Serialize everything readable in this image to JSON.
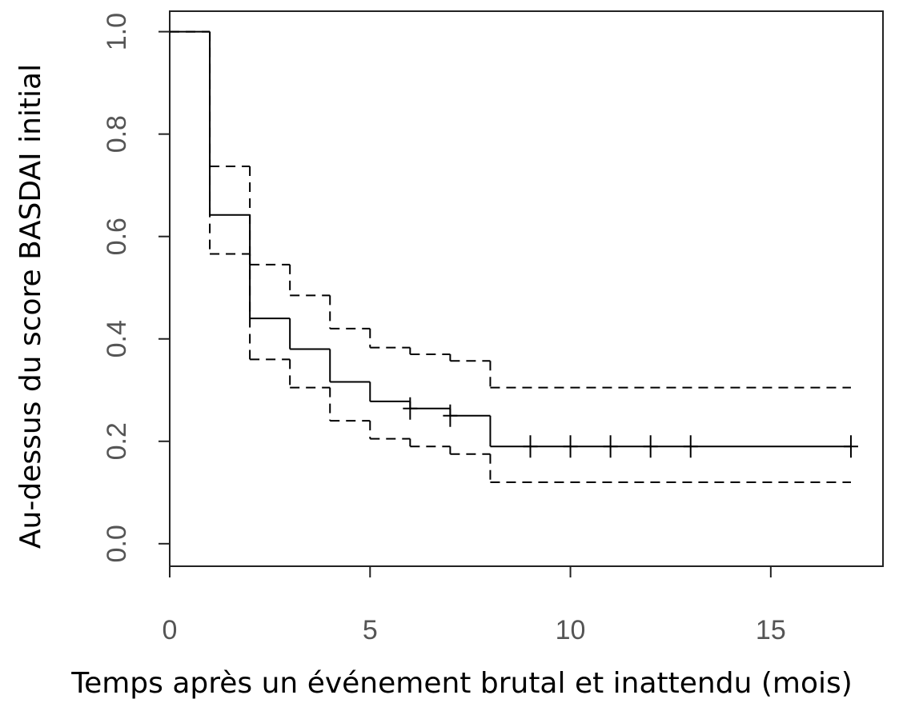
{
  "chart_data": {
    "type": "step",
    "x_label": "Temps après un événement brutal et inattendu (mois)",
    "y_label": "Au-dessus du score BASDAI initial",
    "xlim": [
      0,
      17.8
    ],
    "ylim": [
      -0.044,
      1.04
    ],
    "xticks": [
      0,
      5,
      10,
      15
    ],
    "yticks": [
      {
        "value": 0,
        "label": "0.0"
      },
      0.2,
      0.4,
      0.6,
      0.8,
      {
        "value": 1,
        "label": "1.0"
      }
    ],
    "series": [
      {
        "style": "solid",
        "color": "#000000",
        "x": [
          0,
          1,
          2,
          3,
          4,
          5,
          6,
          7,
          8,
          17
        ],
        "values": [
          1.0,
          0.642,
          0.44,
          0.38,
          0.316,
          0.278,
          0.264,
          0.25,
          0.19,
          0.19
        ]
      },
      {
        "style": "dashed",
        "color": "#000000",
        "x": [
          0,
          1,
          2,
          3,
          4,
          5,
          6,
          7,
          8,
          17
        ],
        "values": [
          1.0,
          0.737,
          0.545,
          0.485,
          0.42,
          0.383,
          0.37,
          0.357,
          0.305,
          0.305
        ]
      },
      {
        "style": "dashed",
        "color": "#000000",
        "x": [
          0,
          1,
          2,
          3,
          4,
          5,
          6,
          7,
          8,
          17
        ],
        "values": [
          1.0,
          0.566,
          0.36,
          0.305,
          0.24,
          0.205,
          0.19,
          0.175,
          0.12,
          0.12
        ]
      }
    ],
    "censored": {
      "x": [
        6,
        7,
        9,
        10,
        11,
        12,
        13,
        17
      ],
      "y": [
        0.264,
        0.25,
        0.19,
        0.19,
        0.19,
        0.19,
        0.19,
        0.19
      ]
    }
  }
}
